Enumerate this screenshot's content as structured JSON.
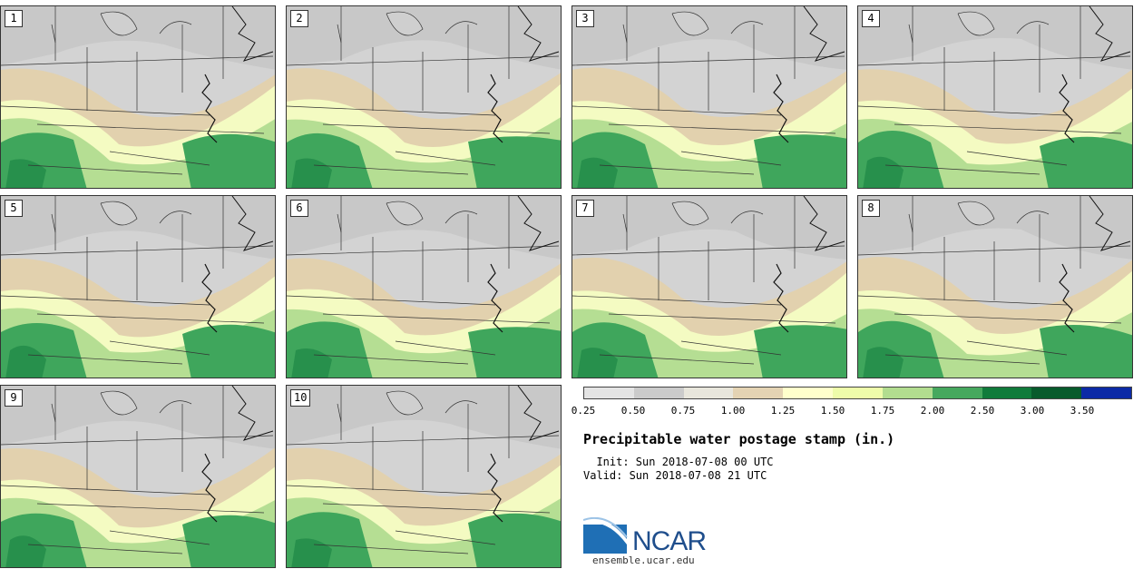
{
  "panels": [
    {
      "label": "1"
    },
    {
      "label": "2"
    },
    {
      "label": "3"
    },
    {
      "label": "4"
    },
    {
      "label": "5"
    },
    {
      "label": "6"
    },
    {
      "label": "7"
    },
    {
      "label": "8"
    },
    {
      "label": "9"
    },
    {
      "label": "10"
    }
  ],
  "legend": {
    "ticks": [
      "0.25",
      "0.50",
      "0.75",
      "1.00",
      "1.25",
      "1.50",
      "1.75",
      "2.00",
      "2.50",
      "3.00",
      "3.50"
    ],
    "colors": [
      "#e4e4e4",
      "#cbcbcb",
      "#e8e6dc",
      "#e4d3b3",
      "#ffffcc",
      "#eefcaa",
      "#b2dd8f",
      "#46a85e",
      "#107b3b",
      "#085b2c",
      "#0c2aa6"
    ]
  },
  "title": "Precipitable water postage stamp (in.)",
  "init_line": "  Init: Sun 2018-07-08 00 UTC",
  "valid_line": "Valid: Sun 2018-07-08 21 UTC",
  "logo": {
    "text": "NCAR",
    "url": "ensemble.ucar.edu"
  },
  "colors": {
    "gray_light": "#d3d3d3",
    "gray_mid": "#c2c2c2",
    "tan": "#e2d1ae",
    "pale_yellow": "#f4fbc2",
    "light_green": "#b5de93",
    "green": "#3fa65c",
    "dark_green": "#0f7a3b"
  }
}
